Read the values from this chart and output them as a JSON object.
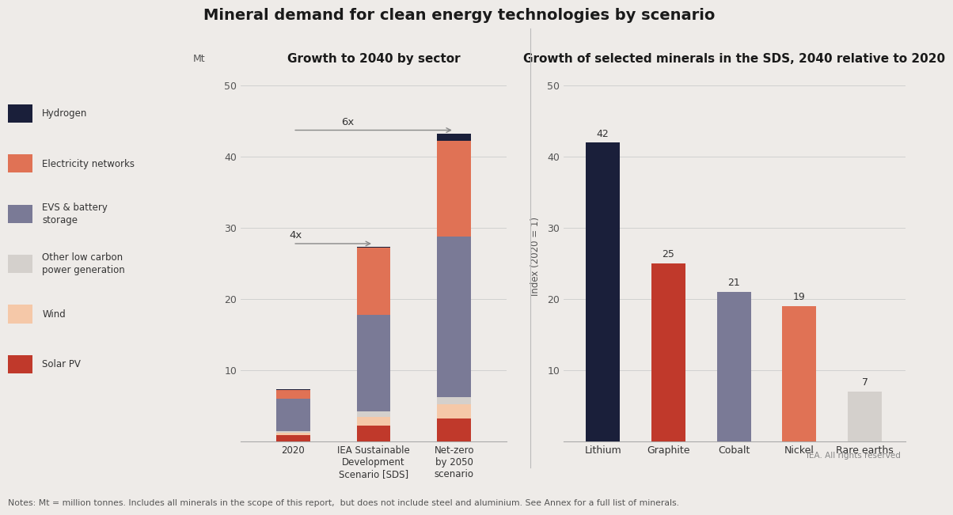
{
  "title": "Mineral demand for clean energy technologies by scenario",
  "background_color": "#eeebe8",
  "left_title": "Growth to 2040 by sector",
  "right_title": "Growth of selected minerals in the SDS, 2040 relative to 2020",
  "notes": "Notes: Mt = million tonnes. Includes all minerals in the scope of this report,  but does not include steel and aluminium. See Annex for a full list of minerals.",
  "iea_credit": "IEA. All rights reserved",
  "stacked_categories": [
    "2020",
    "IEA Sustainable\nDevelopment\nScenario [SDS]",
    "Net-zero\nby 2050\nscenario"
  ],
  "stacked_ylabel": "Mt",
  "stacked_ylim": [
    0,
    52
  ],
  "stacked_yticks": [
    10,
    20,
    30,
    40,
    50
  ],
  "layers": [
    {
      "label": "Solar PV",
      "color": "#c0392b",
      "values": [
        0.8,
        2.2,
        3.2
      ]
    },
    {
      "label": "Wind",
      "color": "#f5c8a8",
      "values": [
        0.4,
        1.2,
        2.0
      ]
    },
    {
      "label": "Other low carbon\npower generation",
      "color": "#d4d0cc",
      "values": [
        0.2,
        0.8,
        1.0
      ]
    },
    {
      "label": "EVS & battery\nstorage",
      "color": "#7a7a96",
      "values": [
        4.5,
        13.5,
        22.5
      ]
    },
    {
      "label": "Electricity networks",
      "color": "#e07255",
      "values": [
        1.3,
        9.5,
        13.5
      ]
    },
    {
      "label": "Hydrogen",
      "color": "#1a1f3a",
      "values": [
        0.05,
        0.05,
        1.0
      ]
    }
  ],
  "bar_colors_right": [
    "#1a1f3a",
    "#c0392b",
    "#7a7a96",
    "#e07255",
    "#d4d0cc"
  ],
  "minerals": [
    "Lithium",
    "Graphite",
    "Cobalt",
    "Nickel",
    "Rare earths"
  ],
  "mineral_values": [
    42,
    25,
    21,
    19,
    7
  ],
  "right_ylabel": "Index (2020 = 1)",
  "right_ylim": [
    0,
    52
  ],
  "right_yticks": [
    10,
    20,
    30,
    40,
    50
  ],
  "legend_items": [
    {
      "label": "Hydrogen",
      "color": "#1a1f3a"
    },
    {
      "label": "Electricity networks",
      "color": "#e07255"
    },
    {
      "label": "EVS & battery\nstorage",
      "color": "#7a7a96"
    },
    {
      "label": "Other low carbon\npower generation",
      "color": "#d4d0cc"
    },
    {
      "label": "Wind",
      "color": "#f5c8a8"
    },
    {
      "label": "Solar PV",
      "color": "#c0392b"
    }
  ]
}
